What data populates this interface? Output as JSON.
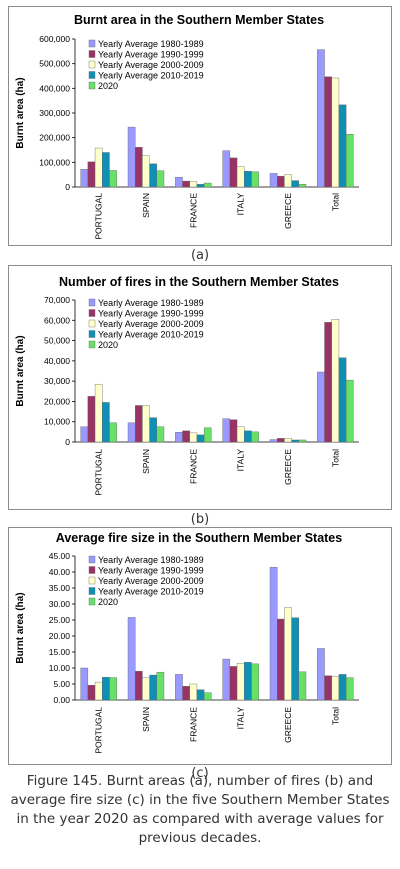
{
  "chart_data": [
    {
      "type": "bar",
      "title": "Burnt area in the Southern Member States",
      "ylabel": "Burnt area (ha)",
      "xlabel": "",
      "ylim": [
        0,
        600000
      ],
      "yticks": [
        "0",
        "100,000",
        "200,000",
        "300,000",
        "400,000",
        "500,000",
        "600,000"
      ],
      "grid": false,
      "legend": "top-left",
      "categories": [
        "PORTUGAL",
        "SPAIN",
        "FRANCE",
        "ITALY",
        "GREECE",
        "Total"
      ],
      "series": [
        {
          "name": "Yearly Average 1980-1989",
          "values": [
            72000,
            243000,
            40000,
            147000,
            55000,
            557000
          ]
        },
        {
          "name": "Yearly Average 1990-1999",
          "values": [
            102000,
            161000,
            24000,
            118000,
            44000,
            447000
          ]
        },
        {
          "name": "Yearly Average 2000-2009",
          "values": [
            158000,
            127000,
            22000,
            83000,
            50000,
            442000
          ]
        },
        {
          "name": "Yearly Average 2010-2019",
          "values": [
            140000,
            94000,
            11000,
            64000,
            26000,
            333000
          ]
        },
        {
          "name": "2020",
          "values": [
            67000,
            66000,
            16000,
            62000,
            11000,
            214000
          ]
        }
      ]
    },
    {
      "type": "bar",
      "title": "Number of fires in the Southern Member States",
      "ylabel": "Burnt area (ha)",
      "xlabel": "",
      "ylim": [
        0,
        70000
      ],
      "yticks": [
        "0",
        "10,000",
        "20,000",
        "30,000",
        "40,000",
        "50,000",
        "60,000",
        "70,000"
      ],
      "grid": false,
      "legend": "top-left",
      "categories": [
        "PORTUGAL",
        "SPAIN",
        "FRANCE",
        "ITALY",
        "GREECE",
        "Total"
      ],
      "series": [
        {
          "name": "Yearly Average 1980-1989",
          "values": [
            7500,
            9500,
            4800,
            11500,
            1200,
            34500
          ]
        },
        {
          "name": "Yearly Average 1990-1999",
          "values": [
            22500,
            18000,
            5500,
            11000,
            1800,
            59000
          ]
        },
        {
          "name": "Yearly Average 2000-2009",
          "values": [
            28500,
            18000,
            4500,
            7500,
            1800,
            60500
          ]
        },
        {
          "name": "Yearly Average 2010-2019",
          "values": [
            19500,
            12000,
            3500,
            5500,
            1000,
            41500
          ]
        },
        {
          "name": "2020",
          "values": [
            9500,
            7500,
            7000,
            5000,
            1000,
            30500
          ]
        }
      ]
    },
    {
      "type": "bar",
      "title": "Average fire size in the Southern Member States",
      "ylabel": "Burnt area (ha)",
      "xlabel": "",
      "ylim": [
        0,
        45
      ],
      "yticks": [
        "0.00",
        "5.00",
        "10.00",
        "15.00",
        "20.00",
        "25.00",
        "30.00",
        "35.00",
        "40.00",
        "45.00"
      ],
      "grid": false,
      "legend": "top-left",
      "categories": [
        "PORTUGAL",
        "SPAIN",
        "FRANCE",
        "ITALY",
        "GREECE",
        "Total"
      ],
      "series": [
        {
          "name": "Yearly Average 1980-1989",
          "values": [
            10.0,
            25.8,
            8.0,
            12.8,
            41.5,
            16.1
          ]
        },
        {
          "name": "Yearly Average 1990-1999",
          "values": [
            4.6,
            9.0,
            4.3,
            10.5,
            25.3,
            7.6
          ]
        },
        {
          "name": "Yearly Average 2000-2009",
          "values": [
            5.6,
            7.0,
            5.0,
            11.5,
            28.9,
            7.3
          ]
        },
        {
          "name": "Yearly Average 2010-2019",
          "values": [
            7.1,
            7.8,
            3.2,
            11.8,
            25.7,
            8.0
          ]
        },
        {
          "name": "2020",
          "values": [
            7.0,
            8.7,
            2.3,
            11.3,
            8.8,
            7.0
          ]
        }
      ]
    }
  ],
  "series_colors": [
    "#9999ff",
    "#993366",
    "#ffffcc",
    "#0f8fb4",
    "#66e066"
  ],
  "labels": {
    "a": "(a)",
    "b": "(b)",
    "c": "(c)",
    "caption": "Figure 145. Burnt areas (a), number of fires (b) and average fire size (c) in the five Southern Member States in the year 2020 as compared with average values for previous decades."
  }
}
